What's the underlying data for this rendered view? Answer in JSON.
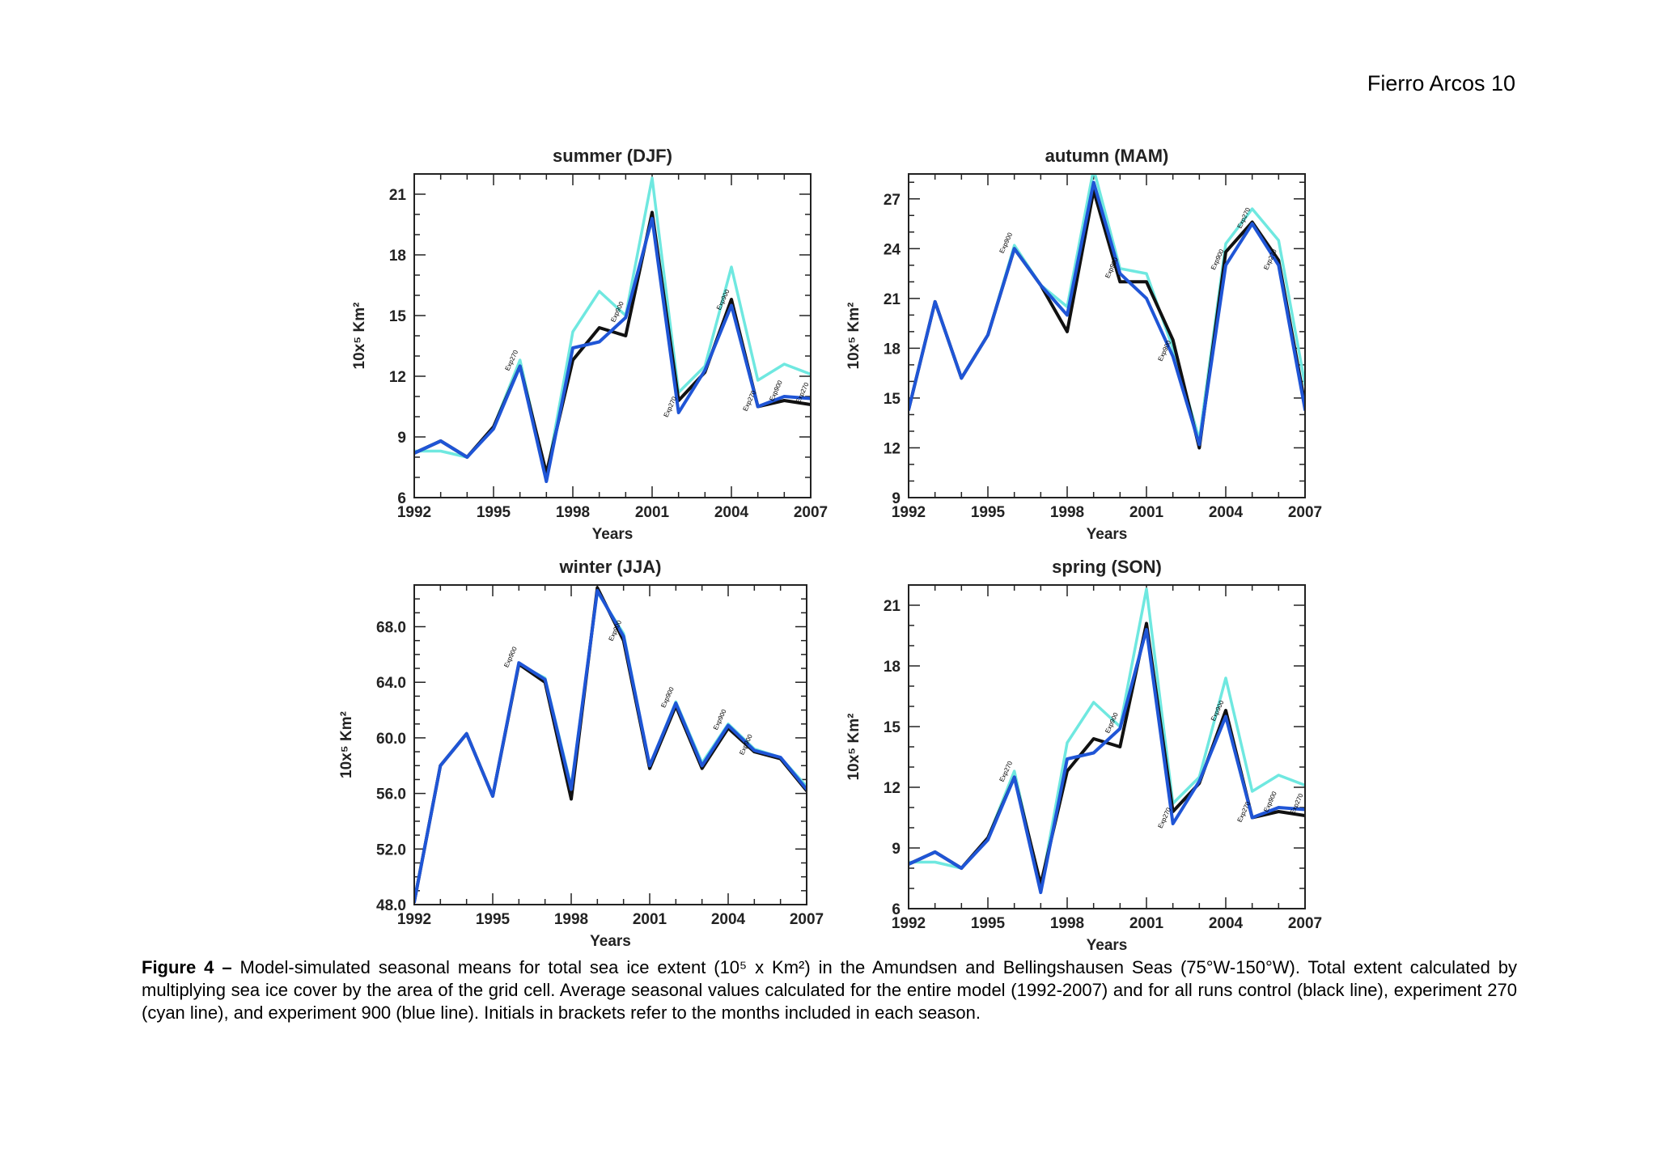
{
  "header": {
    "page_label": "Fierro Arcos 10"
  },
  "caption": {
    "label": "Figure 4 –",
    "text": "Model-simulated seasonal means for total sea ice extent (10⁵ x Km²) in the Amundsen and Bellingshausen Seas (75°W-150°W). Total extent calculated by multiplying sea ice cover by the area of the grid cell. Average seasonal values calculated for the entire model (1992-2007) and for all runs control (black line), experiment 270 (cyan line), and experiment 900 (blue line). Initials in brackets refer to the months included in each season."
  },
  "colors": {
    "control": "#111111",
    "exp270": "#6fe8e0",
    "exp900": "#1f55d6",
    "axis": "#222222"
  },
  "chart_data": [
    {
      "type": "line",
      "title": "summer (DJF)",
      "xlabel": "Years",
      "ylabel": "10x⁵ Km²",
      "xlim": [
        1992,
        2007
      ],
      "ylim": [
        6,
        22
      ],
      "xticks": [
        1992,
        1995,
        1998,
        2001,
        2004,
        2007
      ],
      "yticks": [
        6,
        9,
        12,
        15,
        18,
        21
      ],
      "ytick_labels": [
        "6",
        "9",
        "12",
        "15",
        "18",
        "21"
      ],
      "x": [
        1992,
        1993,
        1994,
        1995,
        1996,
        1997,
        1998,
        1999,
        2000,
        2001,
        2002,
        2003,
        2004,
        2005,
        2006,
        2007
      ],
      "series": [
        {
          "name": "control",
          "values": [
            8.2,
            8.8,
            8.0,
            9.5,
            12.5,
            7.2,
            12.8,
            14.4,
            14.0,
            20.1,
            10.8,
            12.2,
            15.8,
            10.5,
            10.8,
            10.6
          ]
        },
        {
          "name": "exp270",
          "values": [
            8.3,
            8.3,
            8.0,
            9.5,
            12.8,
            7.0,
            14.2,
            16.2,
            15.0,
            21.8,
            11.2,
            12.5,
            17.4,
            11.8,
            12.6,
            12.1
          ]
        },
        {
          "name": "exp900",
          "values": [
            8.2,
            8.8,
            8.0,
            9.4,
            12.5,
            6.8,
            13.4,
            13.7,
            14.9,
            19.8,
            10.2,
            12.3,
            15.5,
            10.5,
            11.0,
            10.9
          ]
        }
      ],
      "annotations": [
        "Exp270",
        "Exp900",
        "Exp270",
        "Exp900",
        "Exp270",
        "Exp900",
        "Exp270"
      ]
    },
    {
      "type": "line",
      "title": "autumn (MAM)",
      "xlabel": "Years",
      "ylabel": "10x⁵ Km²",
      "xlim": [
        1992,
        2007
      ],
      "ylim": [
        9,
        28.5
      ],
      "xticks": [
        1992,
        1995,
        1998,
        2001,
        2004,
        2007
      ],
      "yticks": [
        9,
        12,
        15,
        18,
        21,
        24,
        27
      ],
      "ytick_labels": [
        "9",
        "12",
        "15",
        "18",
        "21",
        "24",
        "27"
      ],
      "x": [
        1992,
        1993,
        1994,
        1995,
        1996,
        1997,
        1998,
        1999,
        2000,
        2001,
        2002,
        2003,
        2004,
        2005,
        2006,
        2007
      ],
      "series": [
        {
          "name": "control",
          "values": [
            14.3,
            20.8,
            16.2,
            18.8,
            24.0,
            21.8,
            19.0,
            27.5,
            22.0,
            22.0,
            18.5,
            12.0,
            23.8,
            25.6,
            23.3,
            14.6
          ]
        },
        {
          "name": "exp270",
          "values": [
            14.3,
            20.8,
            16.2,
            18.8,
            24.2,
            21.8,
            20.5,
            28.8,
            22.8,
            22.5,
            18.0,
            12.5,
            24.3,
            26.4,
            24.5,
            15.8
          ]
        },
        {
          "name": "exp900",
          "values": [
            14.3,
            20.8,
            16.2,
            18.8,
            24.0,
            21.8,
            20.0,
            28.0,
            22.5,
            21.0,
            17.5,
            12.2,
            23.0,
            25.5,
            23.0,
            14.3
          ]
        }
      ],
      "annotations": [
        "Exp900",
        "Exp900",
        "Exp900",
        "Exp900",
        "Exp270",
        "Exp270"
      ]
    },
    {
      "type": "line",
      "title": "winter (JJA)",
      "xlabel": "Years",
      "ylabel": "10x⁵ Km²",
      "xlim": [
        1992,
        2007
      ],
      "ylim": [
        48,
        71
      ],
      "xticks": [
        1992,
        1995,
        1998,
        2001,
        2004,
        2007
      ],
      "yticks": [
        48,
        52,
        56,
        60,
        64,
        68
      ],
      "ytick_labels": [
        "48.0",
        "52.0",
        "56.0",
        "60.0",
        "64.0",
        "68.0"
      ],
      "x": [
        1992,
        1993,
        1994,
        1995,
        1996,
        1997,
        1998,
        1999,
        2000,
        2001,
        2002,
        2003,
        2004,
        2005,
        2006,
        2007
      ],
      "series": [
        {
          "name": "control",
          "values": [
            48.2,
            58.0,
            60.3,
            55.8,
            65.3,
            64.0,
            55.6,
            70.8,
            67.0,
            57.8,
            62.3,
            57.8,
            60.7,
            59.0,
            58.5,
            56.2
          ]
        },
        {
          "name": "exp270",
          "values": [
            48.3,
            58.0,
            60.3,
            55.8,
            65.3,
            64.3,
            56.5,
            70.5,
            67.5,
            58.0,
            62.6,
            58.2,
            61.0,
            59.2,
            58.6,
            56.5
          ]
        },
        {
          "name": "exp900",
          "values": [
            48.2,
            58.0,
            60.3,
            55.8,
            65.4,
            64.2,
            56.3,
            70.6,
            67.3,
            58.0,
            62.5,
            58.0,
            60.9,
            59.1,
            58.6,
            56.3
          ]
        }
      ],
      "annotations": [
        "Exp900",
        "Exp900",
        "Exp900",
        "Exp900",
        "Exp900"
      ]
    },
    {
      "type": "line",
      "title": "spring (SON)",
      "xlabel": "Years",
      "ylabel": "10x⁵ Km²",
      "xlim": [
        1992,
        2007
      ],
      "ylim": [
        6,
        22
      ],
      "xticks": [
        1992,
        1995,
        1998,
        2001,
        2004,
        2007
      ],
      "yticks": [
        6,
        9,
        12,
        15,
        18,
        21
      ],
      "ytick_labels": [
        "6",
        "9",
        "12",
        "15",
        "18",
        "21"
      ],
      "x": [
        1992,
        1993,
        1994,
        1995,
        1996,
        1997,
        1998,
        1999,
        2000,
        2001,
        2002,
        2003,
        2004,
        2005,
        2006,
        2007
      ],
      "series": [
        {
          "name": "control",
          "values": [
            8.2,
            8.8,
            8.0,
            9.5,
            12.5,
            7.2,
            12.8,
            14.4,
            14.0,
            20.1,
            10.8,
            12.2,
            15.8,
            10.5,
            10.8,
            10.6
          ]
        },
        {
          "name": "exp270",
          "values": [
            8.3,
            8.3,
            8.0,
            9.5,
            12.8,
            7.0,
            14.2,
            16.2,
            15.0,
            21.8,
            11.2,
            12.5,
            17.4,
            11.8,
            12.6,
            12.1
          ]
        },
        {
          "name": "exp900",
          "values": [
            8.2,
            8.8,
            8.0,
            9.4,
            12.5,
            6.8,
            13.4,
            13.7,
            14.9,
            19.8,
            10.2,
            12.3,
            15.5,
            10.5,
            11.0,
            10.9
          ]
        }
      ],
      "annotations": [
        "Exp270",
        "Exp900",
        "Exp270",
        "Exp900",
        "Exp270",
        "Exp900",
        "Exp270"
      ]
    }
  ]
}
